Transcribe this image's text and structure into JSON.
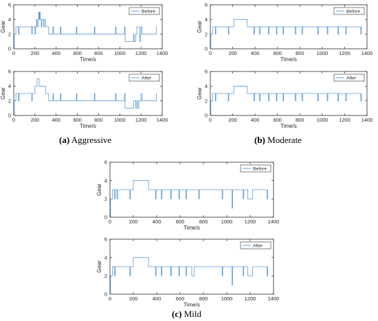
{
  "figure": {
    "captions": [
      {
        "letter": "(a)",
        "text": "Aggressive"
      },
      {
        "letter": "(b)",
        "text": "Moderate"
      },
      {
        "letter": "(c)",
        "text": "Mild"
      }
    ]
  },
  "chart_data": [
    {
      "type": "line",
      "panel": "a-top",
      "xlabel": "Time/s",
      "ylabel": "Gear",
      "xlim": [
        0,
        1400
      ],
      "ylim": [
        0,
        6
      ],
      "xticks": [
        0,
        200,
        400,
        600,
        800,
        1000,
        1200,
        1400
      ],
      "yticks": [
        0,
        2,
        4,
        6
      ],
      "legend_position": "top-right",
      "series": [
        {
          "name": "Before",
          "color": "#5b9bd5",
          "x": [
            0,
            5,
            5,
            20,
            20,
            45,
            45,
            50,
            50,
            55,
            55,
            170,
            170,
            175,
            175,
            200,
            200,
            205,
            205,
            215,
            215,
            220,
            220,
            230,
            230,
            235,
            235,
            240,
            240,
            245,
            245,
            250,
            250,
            260,
            260,
            265,
            265,
            280,
            280,
            290,
            290,
            300,
            300,
            325,
            325,
            330,
            330,
            370,
            370,
            375,
            375,
            440,
            440,
            445,
            445,
            590,
            590,
            595,
            595,
            760,
            760,
            765,
            765,
            960,
            960,
            965,
            965,
            1045,
            1045,
            1050,
            1050,
            1130,
            1130,
            1135,
            1135,
            1150,
            1150,
            1160,
            1160,
            1190,
            1190,
            1195,
            1195,
            1200,
            1200,
            1210,
            1210,
            1345,
            1345,
            1350,
            1350
          ],
          "y": [
            0,
            0,
            2,
            2,
            3,
            3,
            2,
            2,
            3,
            3,
            3,
            3,
            2,
            2,
            3,
            3,
            2,
            2,
            3,
            3,
            4,
            4,
            3,
            3,
            4,
            4,
            5,
            5,
            4,
            4,
            5,
            5,
            4,
            4,
            3,
            3,
            4,
            4,
            3,
            3,
            4,
            4,
            3,
            3,
            3,
            3,
            2,
            2,
            3,
            3,
            2,
            2,
            3,
            3,
            2,
            2,
            3,
            3,
            2,
            2,
            3,
            3,
            2,
            2,
            3,
            3,
            2,
            2,
            3,
            3,
            1,
            1,
            2,
            2,
            1,
            1,
            2,
            2,
            3,
            3,
            1,
            1,
            2,
            2,
            3,
            3,
            2,
            2,
            3,
            3,
            3
          ]
        }
      ]
    },
    {
      "type": "line",
      "panel": "a-bottom",
      "xlabel": "Time/s",
      "ylabel": "Gear",
      "xlim": [
        0,
        1400
      ],
      "ylim": [
        0,
        6
      ],
      "xticks": [
        0,
        200,
        400,
        600,
        800,
        1000,
        1200,
        1400
      ],
      "yticks": [
        0,
        2,
        4,
        6
      ],
      "legend_position": "top-right",
      "series": [
        {
          "name": "After",
          "color": "#5b9bd5",
          "x": [
            0,
            5,
            5,
            20,
            20,
            45,
            45,
            50,
            50,
            55,
            55,
            170,
            170,
            175,
            175,
            200,
            200,
            220,
            220,
            240,
            240,
            270,
            270,
            300,
            300,
            330,
            330,
            370,
            370,
            375,
            375,
            440,
            440,
            445,
            445,
            590,
            590,
            595,
            595,
            760,
            760,
            765,
            765,
            960,
            960,
            965,
            965,
            1045,
            1045,
            1050,
            1050,
            1130,
            1130,
            1150,
            1150,
            1160,
            1160,
            1170,
            1170,
            1180,
            1180,
            1200,
            1200,
            1210,
            1210,
            1345,
            1345,
            1350,
            1350
          ],
          "y": [
            0,
            0,
            2,
            2,
            3,
            3,
            2,
            2,
            3,
            3,
            3,
            3,
            2,
            2,
            3,
            3,
            4,
            4,
            5,
            5,
            4,
            4,
            4,
            4,
            3,
            3,
            2,
            2,
            3,
            3,
            2,
            2,
            3,
            3,
            2,
            2,
            3,
            3,
            2,
            2,
            3,
            3,
            2,
            2,
            3,
            3,
            2,
            2,
            3,
            3,
            1,
            1,
            2,
            2,
            1,
            1,
            2,
            2,
            1,
            1,
            2,
            2,
            3,
            3,
            2,
            2,
            3,
            3,
            3
          ]
        }
      ]
    },
    {
      "type": "line",
      "panel": "b-top",
      "xlabel": "Time/s",
      "ylabel": "Gear",
      "xlim": [
        0,
        1400
      ],
      "ylim": [
        0,
        6
      ],
      "xticks": [
        0,
        200,
        400,
        600,
        800,
        1000,
        1200,
        1400
      ],
      "yticks": [
        0,
        2,
        4,
        6
      ],
      "legend_position": "top-right",
      "series": [
        {
          "name": "Before",
          "color": "#5b9bd5",
          "x": [
            0,
            5,
            5,
            20,
            20,
            45,
            45,
            50,
            50,
            55,
            55,
            160,
            160,
            165,
            165,
            200,
            200,
            210,
            210,
            330,
            330,
            390,
            390,
            395,
            395,
            440,
            440,
            445,
            445,
            520,
            520,
            525,
            525,
            590,
            590,
            595,
            595,
            650,
            650,
            655,
            655,
            760,
            760,
            765,
            765,
            820,
            820,
            825,
            825,
            960,
            960,
            965,
            965,
            1045,
            1045,
            1050,
            1050,
            1140,
            1140,
            1145,
            1145,
            1210,
            1210,
            1215,
            1215,
            1345,
            1345,
            1350,
            1350
          ],
          "y": [
            0,
            0,
            2,
            2,
            3,
            3,
            2,
            2,
            3,
            3,
            3,
            3,
            2,
            2,
            3,
            3,
            3,
            3,
            4,
            4,
            3,
            3,
            2,
            2,
            3,
            3,
            2,
            2,
            3,
            3,
            2,
            2,
            3,
            3,
            2,
            2,
            3,
            3,
            2,
            2,
            3,
            3,
            2,
            2,
            3,
            3,
            2,
            2,
            3,
            3,
            2,
            2,
            3,
            3,
            2,
            2,
            3,
            3,
            2,
            2,
            3,
            3,
            2,
            2,
            3,
            3,
            2,
            2,
            3
          ]
        }
      ]
    },
    {
      "type": "line",
      "panel": "b-bottom",
      "xlabel": "Time/s",
      "ylabel": "Gear",
      "xlim": [
        0,
        1400
      ],
      "ylim": [
        0,
        6
      ],
      "xticks": [
        0,
        200,
        400,
        600,
        800,
        1000,
        1200,
        1400
      ],
      "yticks": [
        0,
        2,
        4,
        6
      ],
      "legend_position": "top-right",
      "series": [
        {
          "name": "After",
          "color": "#5b9bd5",
          "x": [
            0,
            5,
            5,
            20,
            20,
            45,
            45,
            50,
            50,
            55,
            55,
            160,
            160,
            165,
            165,
            200,
            200,
            210,
            210,
            330,
            330,
            390,
            390,
            395,
            395,
            440,
            440,
            445,
            445,
            520,
            520,
            525,
            525,
            590,
            590,
            595,
            595,
            650,
            650,
            655,
            655,
            760,
            760,
            765,
            765,
            820,
            820,
            825,
            825,
            960,
            960,
            965,
            965,
            1045,
            1045,
            1050,
            1050,
            1140,
            1140,
            1145,
            1145,
            1210,
            1210,
            1215,
            1215,
            1345,
            1345,
            1350,
            1350
          ],
          "y": [
            0,
            0,
            2,
            2,
            3,
            3,
            2,
            2,
            3,
            3,
            3,
            3,
            2,
            2,
            3,
            3,
            3,
            3,
            4,
            4,
            3,
            3,
            2,
            2,
            3,
            3,
            2,
            2,
            3,
            3,
            2,
            2,
            3,
            3,
            2,
            2,
            3,
            3,
            2,
            2,
            3,
            3,
            2,
            2,
            3,
            3,
            2,
            2,
            3,
            3,
            2,
            2,
            3,
            3,
            2,
            2,
            3,
            3,
            2,
            2,
            3,
            3,
            2,
            2,
            3,
            3,
            2,
            2,
            3
          ]
        }
      ]
    },
    {
      "type": "line",
      "panel": "c-top",
      "xlabel": "Time/s",
      "ylabel": "Gear",
      "xlim": [
        0,
        1400
      ],
      "ylim": [
        0,
        6
      ],
      "xticks": [
        0,
        200,
        400,
        600,
        800,
        1000,
        1200,
        1400
      ],
      "yticks": [
        0,
        2,
        4,
        6
      ],
      "legend_position": "top-right",
      "series": [
        {
          "name": "Before",
          "color": "#5b9bd5",
          "x": [
            0,
            5,
            5,
            20,
            20,
            40,
            40,
            45,
            45,
            60,
            60,
            65,
            65,
            170,
            170,
            175,
            175,
            200,
            200,
            330,
            330,
            390,
            390,
            395,
            395,
            440,
            440,
            445,
            445,
            520,
            520,
            525,
            525,
            590,
            590,
            595,
            595,
            650,
            650,
            655,
            655,
            760,
            760,
            765,
            765,
            960,
            960,
            965,
            965,
            1045,
            1045,
            1050,
            1050,
            1140,
            1140,
            1145,
            1145,
            1180,
            1180,
            1220,
            1220,
            1345,
            1345,
            1350,
            1350
          ],
          "y": [
            0,
            0,
            2,
            2,
            3,
            3,
            2,
            2,
            3,
            3,
            2,
            2,
            3,
            3,
            2,
            2,
            3,
            3,
            4,
            4,
            3,
            3,
            2,
            2,
            3,
            3,
            2,
            2,
            3,
            3,
            2,
            2,
            3,
            3,
            2,
            2,
            3,
            3,
            2,
            2,
            3,
            3,
            2,
            2,
            3,
            3,
            2,
            2,
            3,
            3,
            1,
            1,
            3,
            3,
            2,
            2,
            3,
            3,
            2,
            2,
            3,
            3,
            2,
            2,
            3
          ]
        }
      ]
    },
    {
      "type": "line",
      "panel": "c-bottom",
      "xlabel": "Time/s",
      "ylabel": "Gear",
      "xlim": [
        0,
        1400
      ],
      "ylim": [
        0,
        6
      ],
      "xticks": [
        0,
        200,
        400,
        600,
        800,
        1000,
        1200,
        1400
      ],
      "yticks": [
        0,
        2,
        4,
        6
      ],
      "legend_position": "top-right",
      "series": [
        {
          "name": "After",
          "color": "#5b9bd5",
          "x": [
            0,
            5,
            5,
            20,
            20,
            40,
            40,
            45,
            45,
            170,
            170,
            175,
            175,
            200,
            200,
            330,
            330,
            390,
            390,
            395,
            395,
            440,
            440,
            445,
            445,
            520,
            520,
            525,
            525,
            590,
            590,
            595,
            595,
            650,
            650,
            655,
            655,
            700,
            700,
            720,
            720,
            960,
            960,
            965,
            965,
            1045,
            1045,
            1050,
            1050,
            1140,
            1140,
            1145,
            1145,
            1180,
            1180,
            1220,
            1220,
            1345,
            1345,
            1350,
            1350
          ],
          "y": [
            0,
            0,
            2,
            2,
            3,
            3,
            2,
            2,
            3,
            3,
            2,
            2,
            3,
            3,
            4,
            4,
            3,
            3,
            2,
            2,
            3,
            3,
            2,
            2,
            3,
            3,
            2,
            2,
            3,
            3,
            2,
            2,
            3,
            3,
            2,
            2,
            3,
            3,
            2,
            2,
            3,
            3,
            2,
            2,
            3,
            3,
            1,
            1,
            3,
            3,
            2,
            2,
            3,
            3,
            2,
            2,
            3,
            3,
            2,
            2,
            3
          ]
        }
      ]
    }
  ]
}
